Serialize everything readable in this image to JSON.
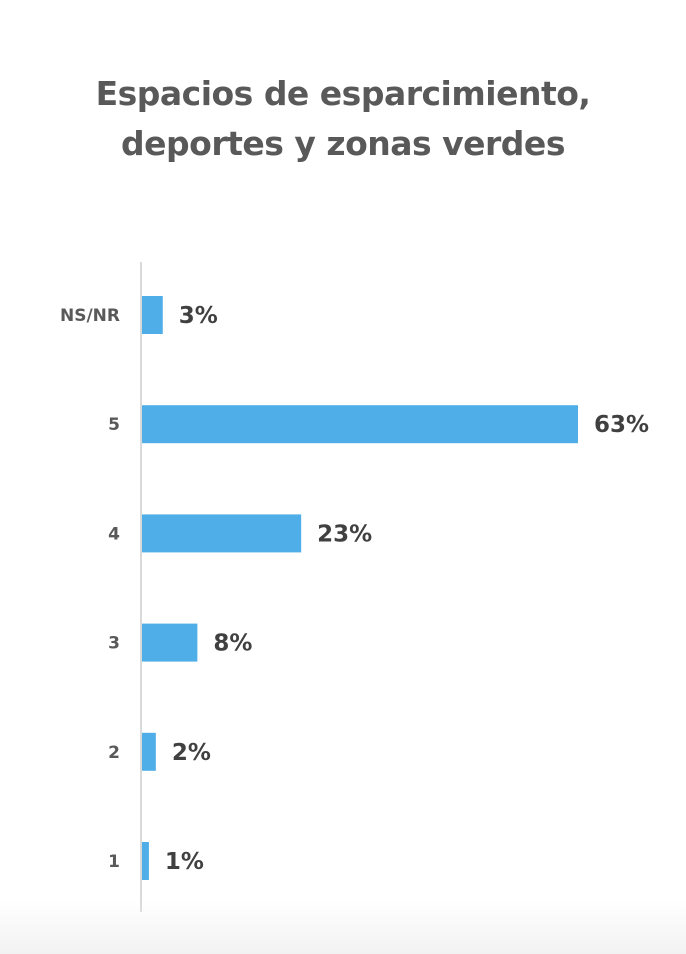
{
  "chart_data": {
    "type": "bar",
    "orientation": "horizontal",
    "title": [
      "Espacios de esparcimiento,",
      "deportes y zonas verdes"
    ],
    "categories": [
      "NS/NR",
      "5",
      "4",
      "3",
      "2",
      "1"
    ],
    "values": [
      3,
      63,
      23,
      8,
      2,
      1
    ],
    "value_labels": [
      "3%",
      "63%",
      "23%",
      "8%",
      "2%",
      "1%"
    ],
    "unit": "%",
    "xlim": [
      0,
      63
    ],
    "grid": false,
    "legend": "none",
    "bar_color": "#4faee8",
    "label_color": "#404040",
    "category_color": "#595959",
    "axis_color": "#d9d9d9"
  }
}
